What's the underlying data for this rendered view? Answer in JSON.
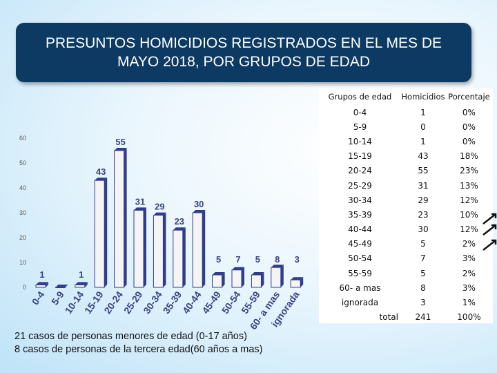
{
  "title": "PRESUNTOS HOMICIDIOS REGISTRADOS EN EL MES DE MAYO 2018, POR GRUPOS DE EDAD",
  "notes": [
    "21 casos de personas menores de edad (0-17 años)",
    "8 casos de personas de la tercera edad(60 años a mas)"
  ],
  "colors": {
    "title_bg": "#0d3a63",
    "bar_front": "#f4f4f4",
    "bar_side": "#2f3d8c",
    "label_text": "#3a4480"
  },
  "chart_data": {
    "type": "bar",
    "categories": [
      "0-4",
      "5-9",
      "10-14",
      "15-19",
      "20-24",
      "25-29",
      "30-34",
      "35-39",
      "40-44",
      "45-49",
      "50-54",
      "55-59",
      "60- a mas",
      "ignorada"
    ],
    "values": [
      1,
      0,
      1,
      43,
      55,
      31,
      29,
      23,
      30,
      5,
      7,
      5,
      8,
      3
    ],
    "data_labels": [
      "1",
      "",
      "1",
      "43",
      "55",
      "31",
      "29",
      "23",
      "30",
      "5",
      "7",
      "5",
      "8",
      "3"
    ],
    "y_ticks": [
      "0",
      "10",
      "20",
      "30",
      "40",
      "50",
      "60"
    ],
    "ylim": [
      0,
      60
    ],
    "grid": false,
    "legend": "none"
  },
  "table": {
    "headers": [
      "Grupos de edad",
      "Homicidios",
      "Porcentaje"
    ],
    "rows": [
      [
        "0-4",
        "1",
        "0%"
      ],
      [
        "5-9",
        "0",
        "0%"
      ],
      [
        "10-14",
        "1",
        "0%"
      ],
      [
        "15-19",
        "43",
        "18%"
      ],
      [
        "20-24",
        "55",
        "23%"
      ],
      [
        "25-29",
        "31",
        "13%"
      ],
      [
        "30-34",
        "29",
        "12%"
      ],
      [
        "35-39",
        "23",
        "10%"
      ],
      [
        "40-44",
        "30",
        "12%"
      ],
      [
        "45-49",
        "5",
        "2%"
      ],
      [
        "50-54",
        "7",
        "3%"
      ],
      [
        "55-59",
        "5",
        "2%"
      ],
      [
        "60- a mas",
        "8",
        "3%"
      ],
      [
        "ignorada",
        "3",
        "1%"
      ]
    ],
    "total": [
      "total",
      "241",
      "100%"
    ]
  }
}
